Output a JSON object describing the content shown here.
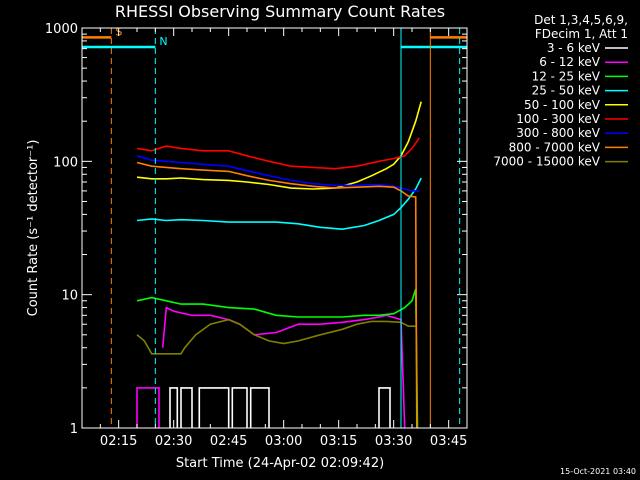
{
  "chart_data": {
    "type": "line",
    "title": "RHESSI Observing Summary Count Rates",
    "xlabel": "Start Time (24-Apr-02 02:09:42)",
    "ylabel": "Count Rate (s⁻¹ detector⁻¹)",
    "yscale": "log",
    "ylim": [
      1,
      1000
    ],
    "xlim_minutes_after_0200": [
      5,
      110
    ],
    "x_ticks": [
      "02:15",
      "02:30",
      "02:45",
      "03:00",
      "03:15",
      "03:30",
      "03:45"
    ],
    "x_tick_minutes": [
      15,
      30,
      45,
      60,
      75,
      90,
      105
    ],
    "y_ticks": [
      "1",
      "10",
      "100",
      "1000"
    ],
    "y_tick_values": [
      1,
      10,
      100,
      1000
    ],
    "legend_header": [
      "Det 1,3,4,5,6,9,",
      "FDecim 1, Att 1"
    ],
    "series": [
      {
        "name": "3 - 6 keV",
        "color": "#ffffff",
        "segments": [
          [
            [
              29,
              1
            ],
            [
              29,
              2
            ],
            [
              31,
              2
            ],
            [
              31,
              1
            ]
          ],
          [
            [
              32,
              1
            ],
            [
              32,
              2
            ],
            [
              35,
              2
            ],
            [
              35,
              1
            ]
          ],
          [
            [
              37,
              1
            ],
            [
              37,
              2
            ],
            [
              45,
              2
            ],
            [
              45,
              1
            ]
          ],
          [
            [
              46,
              1
            ],
            [
              46,
              2
            ],
            [
              50,
              2
            ],
            [
              50,
              1
            ]
          ],
          [
            [
              51,
              1
            ],
            [
              51,
              2
            ],
            [
              56,
              2
            ],
            [
              56,
              1
            ]
          ],
          [
            [
              86,
              1
            ],
            [
              86,
              2
            ],
            [
              89,
              2
            ],
            [
              89,
              1
            ]
          ]
        ]
      },
      {
        "name": "6 - 12 keV",
        "color": "#ff00ff",
        "segments": [
          [
            [
              20,
              1
            ],
            [
              20,
              2
            ],
            [
              26,
              2
            ],
            [
              26,
              1
            ]
          ],
          [
            [
              27,
              4
            ],
            [
              28,
              8
            ],
            [
              30,
              7.5
            ],
            [
              35,
              7
            ],
            [
              40,
              7
            ],
            [
              45,
              6.5
            ],
            [
              48,
              6
            ],
            [
              52,
              5
            ],
            [
              58,
              5.2
            ],
            [
              64,
              6
            ],
            [
              70,
              6
            ],
            [
              76,
              6.2
            ],
            [
              82,
              6.5
            ],
            [
              86,
              6.8
            ],
            [
              88,
              7
            ],
            [
              92,
              6.5
            ],
            [
              93,
              1
            ]
          ]
        ]
      },
      {
        "name": "12 - 25 keV",
        "color": "#00ff00",
        "segments": [
          [
            [
              20,
              9
            ],
            [
              24,
              9.5
            ],
            [
              28,
              9
            ],
            [
              32,
              8.5
            ],
            [
              38,
              8.5
            ],
            [
              45,
              8
            ],
            [
              52,
              7.8
            ],
            [
              58,
              7
            ],
            [
              64,
              6.8
            ],
            [
              70,
              6.8
            ],
            [
              76,
              6.8
            ],
            [
              82,
              7
            ],
            [
              86,
              7
            ],
            [
              90,
              7.2
            ],
            [
              93,
              8
            ],
            [
              95,
              9
            ],
            [
              96,
              11
            ],
            [
              96.5,
              1
            ]
          ]
        ]
      },
      {
        "name": "25 - 50 keV",
        "color": "#00ffff",
        "segments": [
          [
            [
              20,
              36
            ],
            [
              24,
              37
            ],
            [
              28,
              36
            ],
            [
              32,
              36.5
            ],
            [
              38,
              36
            ],
            [
              45,
              35
            ],
            [
              50,
              35
            ],
            [
              58,
              35
            ],
            [
              64,
              34
            ],
            [
              70,
              32
            ],
            [
              76,
              31
            ],
            [
              82,
              33
            ],
            [
              86,
              36
            ],
            [
              90,
              40
            ],
            [
              92,
              45
            ],
            [
              94,
              52
            ],
            [
              96,
              62
            ],
            [
              97.5,
              75
            ]
          ]
        ]
      },
      {
        "name": "50 - 100 keV",
        "color": "#ffff00",
        "segments": [
          [
            [
              20,
              76
            ],
            [
              24,
              74
            ],
            [
              28,
              74
            ],
            [
              32,
              75
            ],
            [
              38,
              73
            ],
            [
              45,
              72
            ],
            [
              50,
              70
            ],
            [
              56,
              67
            ],
            [
              62,
              63
            ],
            [
              68,
              62
            ],
            [
              74,
              63
            ],
            [
              80,
              70
            ],
            [
              84,
              78
            ],
            [
              88,
              88
            ],
            [
              90,
              95
            ],
            [
              92,
              110
            ],
            [
              94,
              140
            ],
            [
              96,
              200
            ],
            [
              97.5,
              280
            ]
          ]
        ]
      },
      {
        "name": "100 - 300 keV",
        "color": "#ff0000",
        "segments": [
          [
            [
              20,
              125
            ],
            [
              24,
              120
            ],
            [
              28,
              130
            ],
            [
              32,
              125
            ],
            [
              38,
              120
            ],
            [
              45,
              120
            ],
            [
              50,
              110
            ],
            [
              56,
              100
            ],
            [
              62,
              92
            ],
            [
              68,
              90
            ],
            [
              74,
              88
            ],
            [
              80,
              92
            ],
            [
              86,
              100
            ],
            [
              90,
              105
            ],
            [
              93,
              110
            ],
            [
              95,
              125
            ],
            [
              97,
              150
            ]
          ]
        ]
      },
      {
        "name": "300 - 800 keV",
        "color": "#0000ff",
        "segments": [
          [
            [
              20,
              110
            ],
            [
              24,
              102
            ],
            [
              28,
              100
            ],
            [
              32,
              98
            ],
            [
              38,
              95
            ],
            [
              45,
              92
            ],
            [
              50,
              85
            ],
            [
              56,
              78
            ],
            [
              62,
              72
            ],
            [
              68,
              68
            ],
            [
              74,
              66
            ],
            [
              80,
              66
            ],
            [
              86,
              67
            ],
            [
              90,
              65
            ],
            [
              93,
              62
            ],
            [
              95,
              60
            ],
            [
              97,
              60
            ]
          ]
        ]
      },
      {
        "name": "800 - 7000 keV",
        "color": "#ff8000",
        "segments": [
          [
            [
              20,
              98
            ],
            [
              24,
              92
            ],
            [
              28,
              90
            ],
            [
              32,
              88
            ],
            [
              38,
              86
            ],
            [
              45,
              84
            ],
            [
              50,
              78
            ],
            [
              56,
              72
            ],
            [
              62,
              68
            ],
            [
              68,
              65
            ],
            [
              74,
              63
            ],
            [
              80,
              64
            ],
            [
              86,
              65
            ],
            [
              90,
              64
            ],
            [
              92,
              60
            ],
            [
              94,
              55
            ],
            [
              96,
              54
            ],
            [
              96.3,
              1
            ]
          ]
        ]
      },
      {
        "name": "7000 - 15000 keV",
        "color": "#808000",
        "segments": [
          [
            [
              20,
              5
            ],
            [
              22,
              4.5
            ],
            [
              24,
              3.6
            ],
            [
              28,
              3.6
            ],
            [
              32,
              3.6
            ],
            [
              33,
              4
            ],
            [
              36,
              5
            ],
            [
              40,
              6
            ],
            [
              45,
              6.5
            ],
            [
              48,
              6
            ],
            [
              52,
              5
            ],
            [
              56,
              4.5
            ],
            [
              60,
              4.3
            ],
            [
              64,
              4.5
            ],
            [
              70,
              5
            ],
            [
              76,
              5.5
            ],
            [
              80,
              6
            ],
            [
              84,
              6.3
            ],
            [
              88,
              6.3
            ],
            [
              92,
              6.2
            ],
            [
              94,
              5.8
            ],
            [
              96,
              5.8
            ]
          ]
        ]
      }
    ],
    "markers": [
      {
        "label": "S",
        "color": "#ff8000",
        "x": 13,
        "style": "dashed",
        "bar_from": 5,
        "bar_to": 13,
        "bar_level": 850
      },
      {
        "label": "N",
        "color": "#00ffff",
        "x": 25,
        "style": "dashed",
        "bar_from": 5,
        "bar_to": 25,
        "bar_level": 720
      },
      {
        "label": "",
        "color": "#00ffff",
        "x": 92,
        "style": "solid",
        "bar_from": 92,
        "bar_to": 110,
        "bar_level": 720
      },
      {
        "label": "",
        "color": "#ff8000",
        "x": 100,
        "style": "solid",
        "bar_from": 100,
        "bar_to": 110,
        "bar_level": 850
      },
      {
        "label": "",
        "color": "#00ffff",
        "x": 108,
        "style": "dashed"
      }
    ]
  },
  "timestamp": "15-Oct-2021 03:40"
}
